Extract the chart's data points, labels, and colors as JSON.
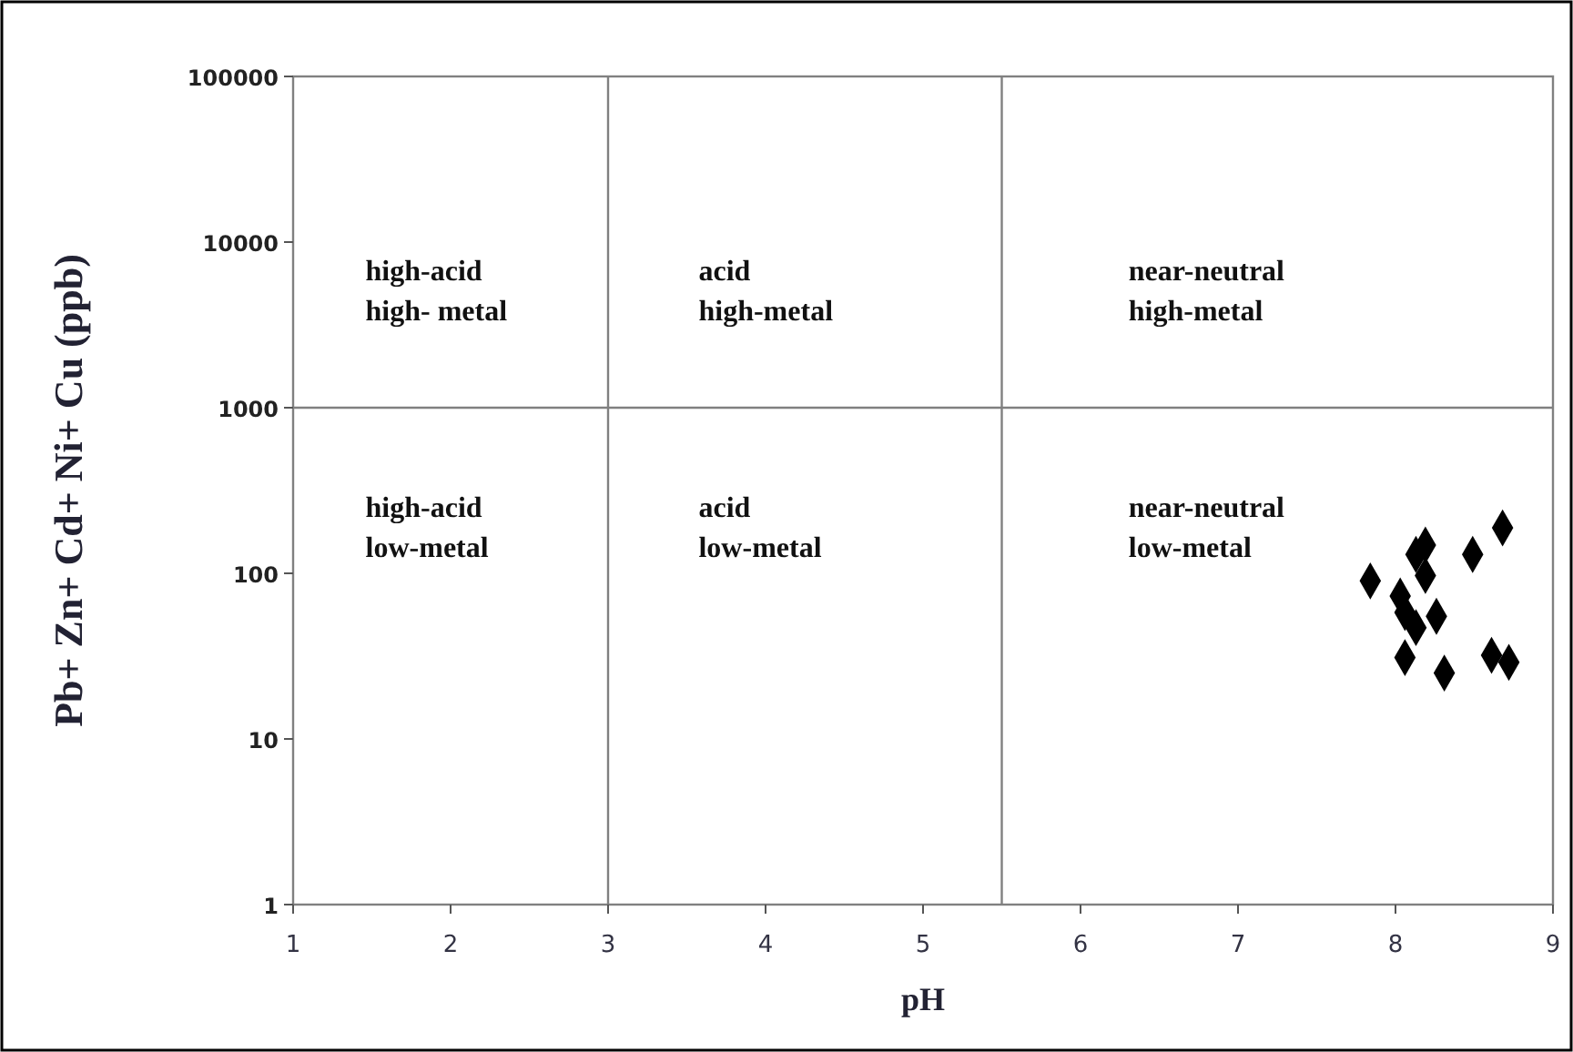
{
  "chart_data": {
    "type": "scatter",
    "xlabel": "pH",
    "ylabel": "Pb+ Zn+ Cd+ Ni+ Cu (ppb)",
    "log": "y",
    "xlim": [
      1,
      9
    ],
    "ylim": [
      1,
      100000
    ],
    "xticks": [
      1,
      2,
      3,
      4,
      5,
      6,
      7,
      8,
      9
    ],
    "yticks": [
      1,
      10,
      100,
      1000,
      10000,
      100000
    ],
    "grid": false,
    "marker": "diamond",
    "series": [
      {
        "color": "#000000",
        "x": [
          7.84,
          8.03,
          8.06,
          8.13,
          8.26,
          8.06,
          8.31,
          8.13,
          8.19,
          8.19,
          8.49,
          8.68,
          8.61,
          8.72
        ],
        "values": [
          90,
          73,
          58,
          47,
          55,
          31,
          25,
          130,
          148,
          97,
          130,
          188,
          32,
          29
        ]
      }
    ],
    "ref_lines": [
      {
        "axis": "x",
        "value": 3,
        "color": "#808080"
      },
      {
        "axis": "x",
        "value": 5.5,
        "color": "#808080"
      },
      {
        "axis": "y",
        "value": 1000,
        "color": "#808080"
      }
    ],
    "annotations": [
      "high-acid\nhigh- metal",
      "acid\nhigh-metal",
      "near-neutral\nhigh-metal",
      "high-acid\nlow-metal",
      "acid\nlow-metal",
      "near-neutral\nlow-metal"
    ]
  }
}
